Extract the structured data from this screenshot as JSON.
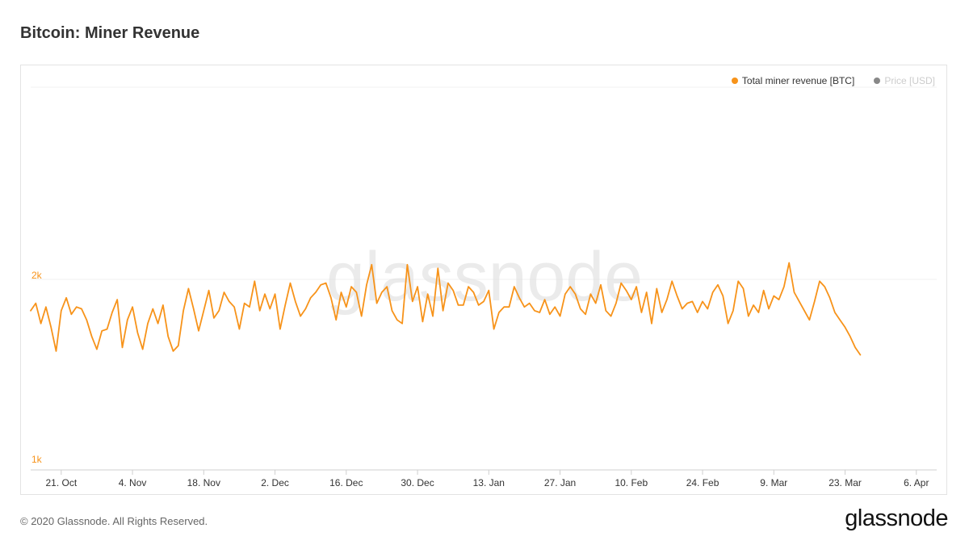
{
  "title": "Bitcoin: Miner Revenue",
  "legend": [
    {
      "label": "Total miner revenue [BTC]",
      "color": "#f7931a",
      "active": true
    },
    {
      "label": "Price [USD]",
      "color": "#888888",
      "active": false
    }
  ],
  "watermark": "glassnode",
  "footer": {
    "copyright": "© 2020 Glassnode. All Rights Reserved.",
    "logo": "glassnode"
  },
  "chart_data": {
    "type": "line",
    "title": "Bitcoin: Miner Revenue",
    "xlabel": "",
    "ylabel": "",
    "x_range": [
      "2019-10-15",
      "2020-04-10"
    ],
    "ylim": [
      1000,
      2000
    ],
    "y_ticks": [
      {
        "value": 1000,
        "label": "1k"
      },
      {
        "value": 2000,
        "label": "2k"
      }
    ],
    "x_ticks": [
      {
        "date": "2019-10-21",
        "label": "21. Oct"
      },
      {
        "date": "2019-11-04",
        "label": "4. Nov"
      },
      {
        "date": "2019-11-18",
        "label": "18. Nov"
      },
      {
        "date": "2019-12-02",
        "label": "2. Dec"
      },
      {
        "date": "2019-12-16",
        "label": "16. Dec"
      },
      {
        "date": "2019-12-30",
        "label": "30. Dec"
      },
      {
        "date": "2020-01-13",
        "label": "13. Jan"
      },
      {
        "date": "2020-01-27",
        "label": "27. Jan"
      },
      {
        "date": "2020-02-10",
        "label": "10. Feb"
      },
      {
        "date": "2020-02-24",
        "label": "24. Feb"
      },
      {
        "date": "2020-03-09",
        "label": "9. Mar"
      },
      {
        "date": "2020-03-23",
        "label": "23. Mar"
      },
      {
        "date": "2020-04-06",
        "label": "6. Apr"
      }
    ],
    "grid": true,
    "legend_position": "top-right",
    "series": [
      {
        "name": "Total miner revenue [BTC]",
        "color": "#f7931a",
        "start_date": "2019-10-15",
        "values": [
          1830,
          1870,
          1760,
          1850,
          1740,
          1610,
          1830,
          1900,
          1810,
          1850,
          1840,
          1780,
          1690,
          1620,
          1720,
          1730,
          1820,
          1890,
          1630,
          1780,
          1850,
          1710,
          1620,
          1760,
          1840,
          1760,
          1860,
          1690,
          1610,
          1640,
          1830,
          1950,
          1840,
          1720,
          1830,
          1940,
          1790,
          1830,
          1930,
          1880,
          1850,
          1730,
          1870,
          1850,
          1990,
          1830,
          1920,
          1840,
          1920,
          1730,
          1860,
          1980,
          1880,
          1800,
          1840,
          1900,
          1930,
          1970,
          1980,
          1900,
          1780,
          1930,
          1850,
          1960,
          1930,
          1800,
          1970,
          2080,
          1870,
          1930,
          1960,
          1830,
          1780,
          1760,
          2080,
          1880,
          1960,
          1770,
          1920,
          1800,
          2060,
          1830,
          1980,
          1940,
          1860,
          1860,
          1960,
          1930,
          1860,
          1880,
          1940,
          1730,
          1820,
          1850,
          1850,
          1960,
          1900,
          1850,
          1870,
          1830,
          1820,
          1890,
          1810,
          1850,
          1800,
          1920,
          1960,
          1920,
          1840,
          1810,
          1920,
          1870,
          1970,
          1830,
          1800,
          1870,
          1980,
          1940,
          1890,
          1960,
          1820,
          1930,
          1760,
          1950,
          1820,
          1890,
          1990,
          1910,
          1840,
          1870,
          1880,
          1820,
          1880,
          1840,
          1930,
          1970,
          1910,
          1760,
          1830,
          1990,
          1950,
          1800,
          1860,
          1820,
          1940,
          1840,
          1910,
          1890,
          1960,
          2090,
          1930,
          1880,
          1830,
          1780,
          1880,
          1990,
          1960,
          1900,
          1820,
          1780,
          1740,
          1690,
          1630,
          1590
        ]
      }
    ]
  }
}
